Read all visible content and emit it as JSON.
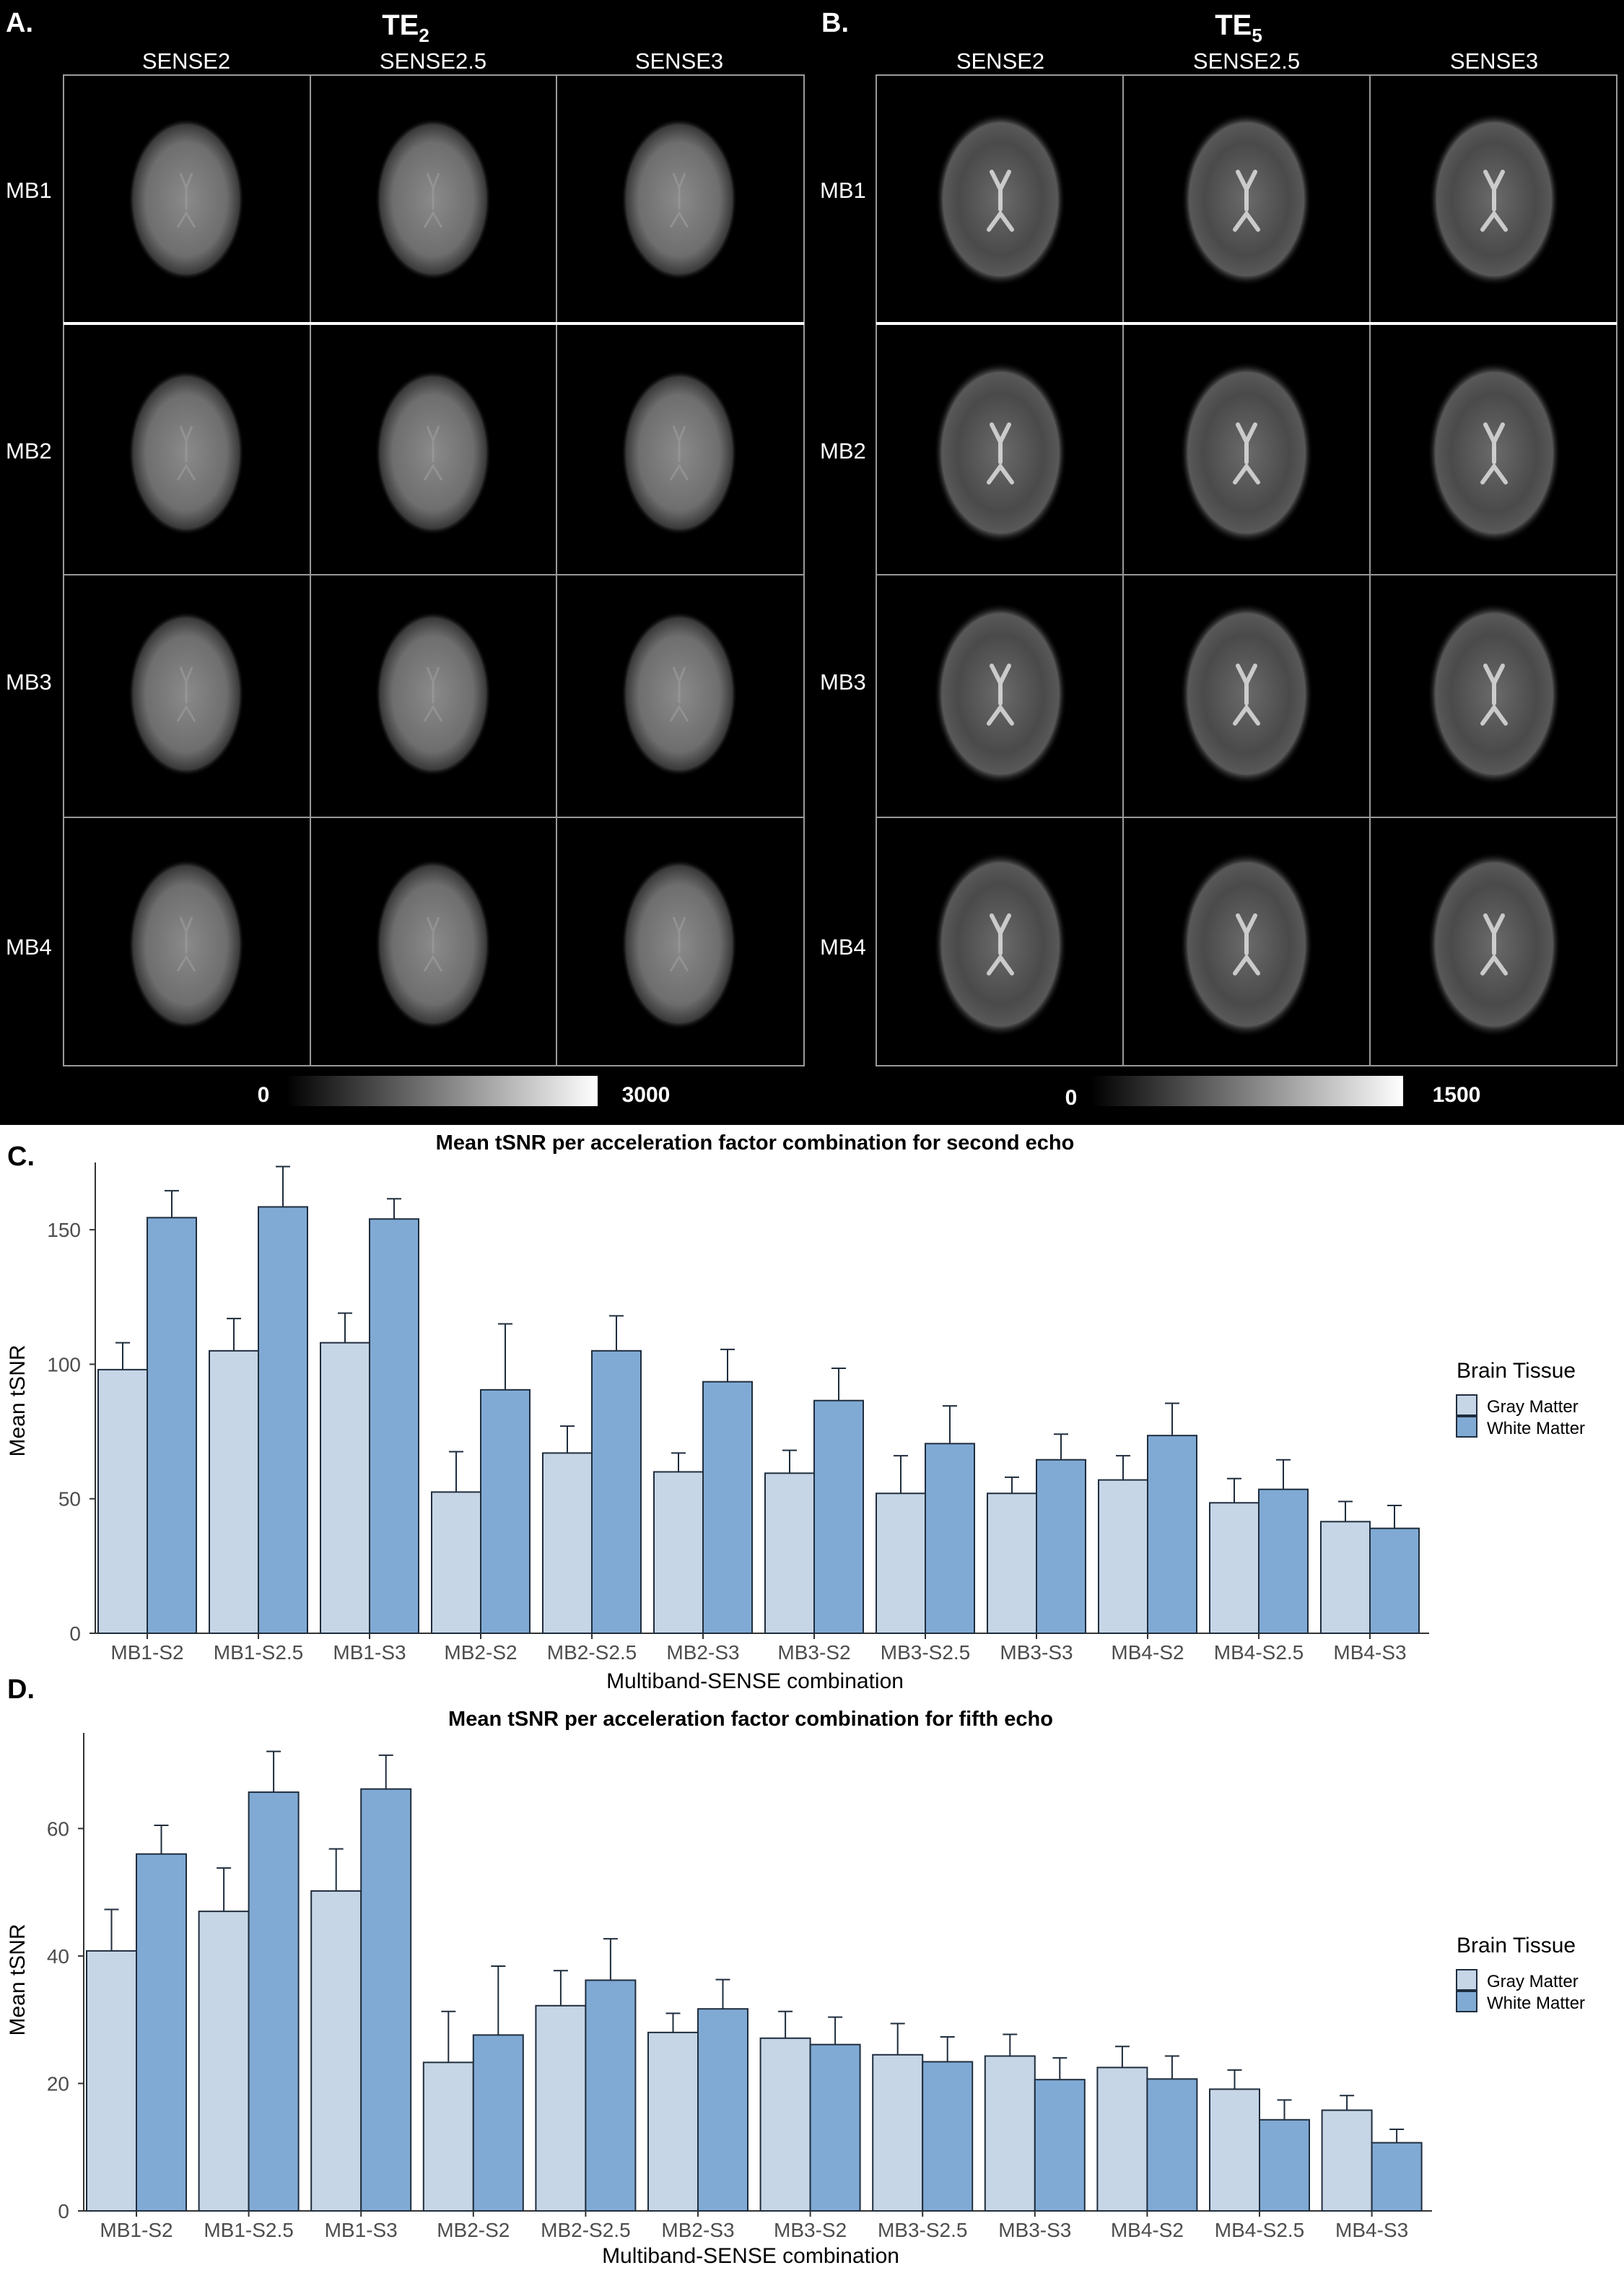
{
  "panel_a": {
    "letter": "A.",
    "echo_title": "TE",
    "echo_subscript": "2",
    "columns": [
      "SENSE2",
      "SENSE2.5",
      "SENSE3"
    ],
    "rows": [
      "MB1",
      "MB2",
      "MB3",
      "MB4"
    ],
    "colorbar": {
      "min": "0",
      "max": "3000"
    }
  },
  "panel_b": {
    "letter": "B.",
    "echo_title": "TE",
    "echo_subscript": "5",
    "columns": [
      "SENSE2",
      "SENSE2.5",
      "SENSE3"
    ],
    "rows": [
      "MB1",
      "MB2",
      "MB3",
      "MB4"
    ],
    "colorbar": {
      "min": "0",
      "max": "1500"
    }
  },
  "chart_data": [
    {
      "panel": "C.",
      "type": "bar",
      "title": "Mean tSNR per acceleration factor combination for second echo",
      "xlabel": "Multiband-SENSE combination",
      "ylabel": "Mean tSNR",
      "ylim": [
        0,
        175
      ],
      "yticks": [
        "0",
        "50",
        "100",
        "150"
      ],
      "categories": [
        "MB1-S2",
        "MB1-S2.5",
        "MB1-S3",
        "MB2-S2",
        "MB2-S2.5",
        "MB2-S3",
        "MB3-S2",
        "MB3-S2.5",
        "MB3-S3",
        "MB4-S2",
        "MB4-S2.5",
        "MB4-S3"
      ],
      "legend_title": "Brain Tissue",
      "series": [
        {
          "name": "Gray Matter",
          "color": "#c6d6e6",
          "values": [
            98,
            105,
            108,
            52.5,
            67,
            60,
            59.5,
            52,
            52,
            57,
            48.5,
            41.5
          ],
          "errors": [
            10,
            12,
            11,
            15,
            10,
            7,
            8.5,
            14,
            6,
            9,
            9,
            7.5
          ]
        },
        {
          "name": "White Matter",
          "color": "#80aad4",
          "values": [
            154.5,
            158.5,
            154,
            90.5,
            105,
            93.5,
            86.5,
            70.5,
            64.5,
            73.5,
            53.5,
            39
          ],
          "errors": [
            10,
            15,
            7.5,
            24.5,
            13,
            12,
            12,
            14,
            9.5,
            12,
            11,
            8.5
          ]
        }
      ]
    },
    {
      "panel": "D.",
      "type": "bar",
      "title": "Mean tSNR per acceleration factor combination for fifth echo",
      "xlabel": "Multiband-SENSE combination",
      "ylabel": "Mean tSNR",
      "ylim": [
        0,
        75
      ],
      "yticks": [
        "0",
        "20",
        "40",
        "60"
      ],
      "categories": [
        "MB1-S2",
        "MB1-S2.5",
        "MB1-S3",
        "MB2-S2",
        "MB2-S2.5",
        "MB2-S3",
        "MB3-S2",
        "MB3-S2.5",
        "MB3-S3",
        "MB4-S2",
        "MB4-S2.5",
        "MB4-S3"
      ],
      "legend_title": "Brain Tissue",
      "series": [
        {
          "name": "Gray Matter",
          "color": "#c6d6e6",
          "values": [
            40.8,
            47,
            50.2,
            23.3,
            32.2,
            28,
            27.1,
            24.5,
            24.3,
            22.5,
            19.1,
            15.8
          ],
          "errors": [
            6.5,
            6.8,
            6.6,
            8,
            5.5,
            3,
            4.2,
            4.9,
            3.4,
            3.3,
            3,
            2.3
          ]
        },
        {
          "name": "White Matter",
          "color": "#80aad4",
          "values": [
            56,
            65.7,
            66.2,
            27.6,
            36.2,
            31.7,
            26.1,
            23.4,
            20.6,
            20.7,
            14.3,
            10.7
          ],
          "errors": [
            4.5,
            6.4,
            5.3,
            10.8,
            6.5,
            4.6,
            4.3,
            3.9,
            3.4,
            3.6,
            3.1,
            2.1
          ]
        }
      ]
    }
  ]
}
